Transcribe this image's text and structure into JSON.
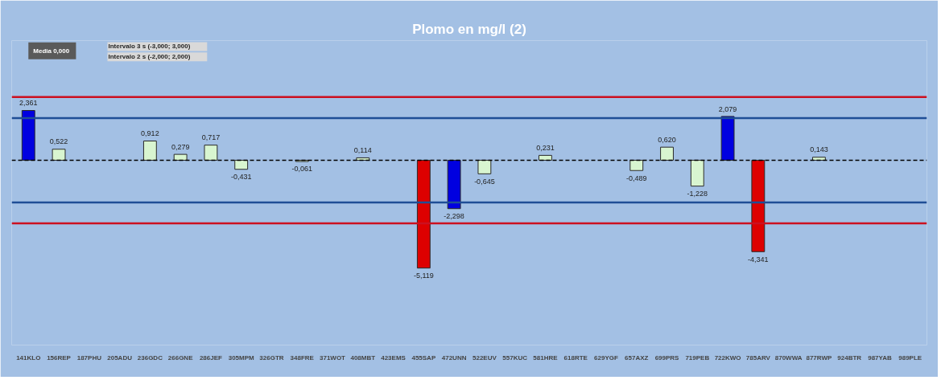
{
  "chart_data": {
    "type": "bar",
    "title": "Plomo en mg/l (2)",
    "categories": [
      "141KLO",
      "156REP",
      "187PHU",
      "205ADU",
      "236GDC",
      "266GNE",
      "286JEF",
      "305MPM",
      "326GTR",
      "348FRE",
      "371WOT",
      "408MBT",
      "423EMS",
      "455SAP",
      "472UNN",
      "522EUV",
      "557KUC",
      "581HRE",
      "618RTE",
      "629YGF",
      "657AXZ",
      "699PRS",
      "719PEB",
      "722KWO",
      "785ARV",
      "870WWA",
      "877RWP",
      "924BTR",
      "987YAB",
      "989PLE"
    ],
    "values": [
      2.361,
      0.522,
      null,
      null,
      0.912,
      0.279,
      0.717,
      -0.431,
      null,
      -0.061,
      null,
      0.114,
      null,
      -5.119,
      -2.298,
      -0.645,
      null,
      0.231,
      null,
      null,
      -0.489,
      0.62,
      -1.228,
      2.079,
      -4.341,
      null,
      0.143,
      null,
      null,
      null
    ],
    "value_labels": [
      "2,361",
      "0,522",
      null,
      null,
      "0,912",
      "0,279",
      "0,717",
      "-0,431",
      null,
      "-0,061",
      null,
      "0,114",
      null,
      "-5,119",
      "-2,298",
      "-0,645",
      null,
      "0,231",
      null,
      null,
      "-0,489",
      "0,620",
      "-1,228",
      "2,079",
      "-4,341",
      null,
      "0,143",
      null,
      null,
      null
    ],
    "colors": [
      "#0000e0",
      "#d8f5d0",
      "#d8f5d0",
      "#d8f5d0",
      "#d8f5d0",
      "#d8f5d0",
      "#d8f5d0",
      "#d8f5d0",
      "#d8f5d0",
      "#d8f5d0",
      "#d8f5d0",
      "#d8f5d0",
      "#d8f5d0",
      "#dd0000",
      "#0000e0",
      "#d8f5d0",
      "#d8f5d0",
      "#d8f5d0",
      "#d8f5d0",
      "#d8f5d0",
      "#d8f5d0",
      "#d8f5d0",
      "#d8f5d0",
      "#0000e0",
      "#dd0000",
      "#d8f5d0",
      "#d8f5d0",
      "#d8f5d0",
      "#d8f5d0",
      "#d8f5d0"
    ],
    "ref_lines": [
      {
        "axis": "y",
        "value": 3,
        "color": "#cc1020",
        "line_style": "solid"
      },
      {
        "axis": "y",
        "value": 2,
        "color": "#1f4e96",
        "line_style": "solid"
      },
      {
        "axis": "y",
        "value": 0,
        "color": "#000000",
        "line_style": "dashed"
      },
      {
        "axis": "y",
        "value": -2,
        "color": "#1f4e96",
        "line_style": "solid"
      },
      {
        "axis": "y",
        "value": -3,
        "color": "#cc1020",
        "line_style": "solid"
      }
    ],
    "annotations": [
      "Media  0,000",
      "Intervalo 3 s          (-3,000; 3,000)",
      "Intervalo 2 s          (-2,000; 2,000)"
    ],
    "tick_labels": "x",
    "grid": false
  }
}
